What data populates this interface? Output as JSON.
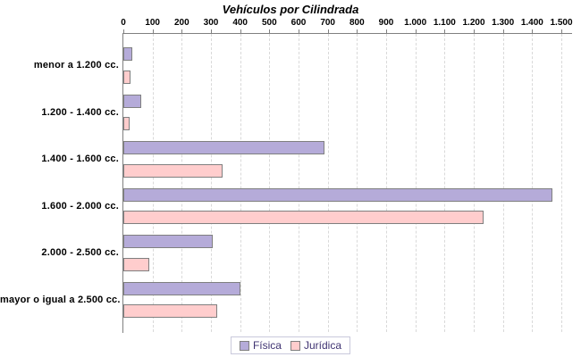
{
  "chart_data": {
    "type": "bar",
    "orientation": "horizontal",
    "title": "Vehículos por Cilindrada",
    "categories": [
      "menor a 1.200 cc.",
      "1.200 - 1.400 cc.",
      "1.400 - 1.600 cc.",
      "1.600 - 2.000 cc.",
      "2.000 - 2.500 cc.",
      "mayor o igual a 2.500 cc."
    ],
    "series": [
      {
        "name": "Física",
        "key": "fisica",
        "color": "#b5abd9",
        "values": [
          30,
          60,
          690,
          1470,
          305,
          400
        ]
      },
      {
        "name": "Jurídica",
        "key": "juridica",
        "color": "#ffcdcd",
        "values": [
          25,
          20,
          340,
          1235,
          90,
          320
        ]
      }
    ],
    "value_axis": {
      "min": 0,
      "max": 1500,
      "tick_interval": 100,
      "tick_labels": [
        "0",
        "100",
        "200",
        "300",
        "400",
        "500",
        "600",
        "700",
        "800",
        "900",
        "1.000",
        "1.100",
        "1.200",
        "1.300",
        "1.400",
        "1.500"
      ],
      "position": "top"
    },
    "grid": "dashed-vertical",
    "legend_position": "bottom",
    "colors": {
      "bar_border": "#7f7f7f",
      "axis": "#808080",
      "gridline": "#d9d9d9",
      "legend_text": "#3f3372",
      "legend_border": "#c9c9dc",
      "background": "#ffffff"
    }
  }
}
